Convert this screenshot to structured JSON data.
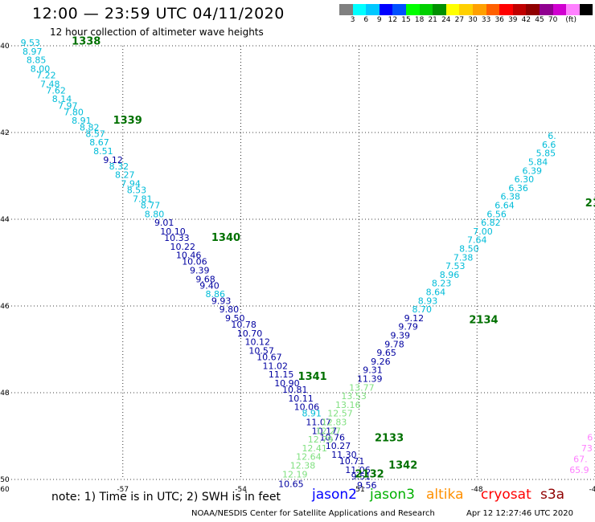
{
  "title": "12:00 — 23:59 UTC 04/11/2020",
  "subtitle": "12 hour collection of altimeter wave heights",
  "legend": {
    "colors": [
      "#808080",
      "#00ffff",
      "#00c8ff",
      "#0000ff",
      "#0050ff",
      "#00ff00",
      "#00d000",
      "#009000",
      "#ffff00",
      "#ffd000",
      "#ffa000",
      "#ff6000",
      "#ff0000",
      "#c00000",
      "#900000",
      "#900090",
      "#d000d0",
      "#ff80ff",
      "#000000"
    ],
    "labels": [
      "3",
      "6",
      "9",
      "12",
      "15",
      "18",
      "21",
      "24",
      "27",
      "30",
      "33",
      "36",
      "39",
      "42",
      "45",
      "70",
      "(ft)"
    ]
  },
  "axes": {
    "x_ticks": [
      "-57",
      "-54",
      "-51",
      "-48",
      "-45"
    ],
    "y_ticks": [
      "-40",
      "-42",
      "-44",
      "-46",
      "-48",
      "-50"
    ],
    "corner_label": "-60",
    "xlim": [
      -60,
      -45
    ],
    "ylim": [
      -50,
      -40
    ]
  },
  "tracks": [
    {
      "id": "1338",
      "color": "#007000",
      "lon": -58.3,
      "lat": -39.97
    },
    {
      "id": "1339",
      "color": "#007000",
      "lon": -57.25,
      "lat": -41.8
    },
    {
      "id": "1340",
      "color": "#007000",
      "lon": -54.75,
      "lat": -44.5
    },
    {
      "id": "1341",
      "color": "#007000",
      "lon": -52.55,
      "lat": -47.7
    },
    {
      "id": "1342",
      "color": "#007000",
      "lon": -50.25,
      "lat": -49.75
    },
    {
      "id": "2132",
      "color": "#007000",
      "lon": -51.1,
      "lat": -49.95
    },
    {
      "id": "2133",
      "color": "#007000",
      "lon": -50.6,
      "lat": -49.12
    },
    {
      "id": "2134",
      "color": "#007000",
      "lon": -48.2,
      "lat": -46.4
    },
    {
      "id": "21",
      "color": "#007000",
      "lon": -45.25,
      "lat": -43.7
    }
  ],
  "observations": [
    {
      "value": "9.53",
      "color": "#00bcd8",
      "lon": -59.6,
      "lat": -40.0
    },
    {
      "value": "8.97",
      "color": "#00bcd8",
      "lon": -59.55,
      "lat": -40.2
    },
    {
      "value": "8.85",
      "color": "#00bcd8",
      "lon": -59.45,
      "lat": -40.4
    },
    {
      "value": "8.00",
      "color": "#00bcd8",
      "lon": -59.35,
      "lat": -40.6
    },
    {
      "value": "7.22",
      "color": "#00bcd8",
      "lon": -59.2,
      "lat": -40.75
    },
    {
      "value": "7.48",
      "color": "#00bcd8",
      "lon": -59.1,
      "lat": -40.95
    },
    {
      "value": "7.62",
      "color": "#00bcd8",
      "lon": -58.95,
      "lat": -41.1
    },
    {
      "value": "8.14",
      "color": "#00bcd8",
      "lon": -58.8,
      "lat": -41.3
    },
    {
      "value": "7.97",
      "color": "#00bcd8",
      "lon": -58.65,
      "lat": -41.45
    },
    {
      "value": "7.80",
      "color": "#00bcd8",
      "lon": -58.5,
      "lat": -41.6
    },
    {
      "value": "8.91",
      "color": "#00bcd8",
      "lon": -58.3,
      "lat": -41.8
    },
    {
      "value": "8.82",
      "color": "#00bcd8",
      "lon": -58.1,
      "lat": -41.95
    },
    {
      "value": "8.57",
      "color": "#00bcd8",
      "lon": -57.95,
      "lat": -42.1
    },
    {
      "value": "8.67",
      "color": "#00bcd8",
      "lon": -57.85,
      "lat": -42.3
    },
    {
      "value": "8.51",
      "color": "#00bcd8",
      "lon": -57.75,
      "lat": -42.5
    },
    {
      "value": "9.12",
      "color": "#0000a0",
      "lon": -57.5,
      "lat": -42.7
    },
    {
      "value": "8.32",
      "color": "#00bcd8",
      "lon": -57.35,
      "lat": -42.85
    },
    {
      "value": "8.27",
      "color": "#00bcd8",
      "lon": -57.2,
      "lat": -43.05
    },
    {
      "value": "7.94",
      "color": "#00bcd8",
      "lon": -57.05,
      "lat": -43.25
    },
    {
      "value": "8.53",
      "color": "#00bcd8",
      "lon": -56.9,
      "lat": -43.4
    },
    {
      "value": "7.81",
      "color": "#00bcd8",
      "lon": -56.75,
      "lat": -43.6
    },
    {
      "value": "8.77",
      "color": "#00bcd8",
      "lon": -56.55,
      "lat": -43.75
    },
    {
      "value": "8.80",
      "color": "#00bcd8",
      "lon": -56.45,
      "lat": -43.95
    },
    {
      "value": "9.01",
      "color": "#0000a0",
      "lon": -56.2,
      "lat": -44.15
    },
    {
      "value": "10.10",
      "color": "#0000a0",
      "lon": -56.05,
      "lat": -44.35
    },
    {
      "value": "10.33",
      "color": "#0000a0",
      "lon": -55.95,
      "lat": -44.5
    },
    {
      "value": "10.22",
      "color": "#0000a0",
      "lon": -55.8,
      "lat": -44.7
    },
    {
      "value": "10.46",
      "color": "#0000a0",
      "lon": -55.65,
      "lat": -44.9
    },
    {
      "value": "10.06",
      "color": "#0000a0",
      "lon": -55.5,
      "lat": -45.05
    },
    {
      "value": "9.39",
      "color": "#0000a0",
      "lon": -55.3,
      "lat": -45.25
    },
    {
      "value": "9.68",
      "color": "#0000a0",
      "lon": -55.15,
      "lat": -45.45
    },
    {
      "value": "9.40",
      "color": "#0000a0",
      "lon": -55.05,
      "lat": -45.6
    },
    {
      "value": "8.86",
      "color": "#00bcd8",
      "lon": -54.9,
      "lat": -45.8
    },
    {
      "value": "9.93",
      "color": "#0000a0",
      "lon": -54.75,
      "lat": -45.95
    },
    {
      "value": "9.80",
      "color": "#0000a0",
      "lon": -54.55,
      "lat": -46.15
    },
    {
      "value": "9.50",
      "color": "#0000a0",
      "lon": -54.4,
      "lat": -46.35
    },
    {
      "value": "10.78",
      "color": "#0000a0",
      "lon": -54.25,
      "lat": -46.5
    },
    {
      "value": "10.70",
      "color": "#0000a0",
      "lon": -54.1,
      "lat": -46.7
    },
    {
      "value": "10.12",
      "color": "#0000a0",
      "lon": -53.9,
      "lat": -46.9
    },
    {
      "value": "10.57",
      "color": "#0000a0",
      "lon": -53.8,
      "lat": -47.1
    },
    {
      "value": "10.67",
      "color": "#0000a0",
      "lon": -53.6,
      "lat": -47.25
    },
    {
      "value": "11.02",
      "color": "#0000a0",
      "lon": -53.45,
      "lat": -47.45
    },
    {
      "value": "11.15",
      "color": "#0000a0",
      "lon": -53.3,
      "lat": -47.65
    },
    {
      "value": "10.90",
      "color": "#0000a0",
      "lon": -53.15,
      "lat": -47.85
    },
    {
      "value": "10.81",
      "color": "#0000a0",
      "lon": -52.95,
      "lat": -48.0
    },
    {
      "value": "10.11",
      "color": "#0000a0",
      "lon": -52.8,
      "lat": -48.2
    },
    {
      "value": "10.06",
      "color": "#0000a0",
      "lon": -52.65,
      "lat": -48.4
    },
    {
      "value": "8.91",
      "color": "#00bcd8",
      "lon": -52.45,
      "lat": -48.55
    },
    {
      "value": "11.07",
      "color": "#0000a0",
      "lon": -52.35,
      "lat": -48.75
    },
    {
      "value": "10.17",
      "color": "#0000a0",
      "lon": -52.2,
      "lat": -48.95
    },
    {
      "value": "10.76",
      "color": "#0000a0",
      "lon": -52.0,
      "lat": -49.1
    },
    {
      "value": "10.27",
      "color": "#0000a0",
      "lon": -51.85,
      "lat": -49.3
    },
    {
      "value": "11.30",
      "color": "#0000a0",
      "lon": -51.7,
      "lat": -49.5
    },
    {
      "value": "10.71",
      "color": "#0000a0",
      "lon": -51.5,
      "lat": -49.65
    },
    {
      "value": "11.06",
      "color": "#0000a0",
      "lon": -51.35,
      "lat": -49.85
    },
    {
      "value": "9.51",
      "color": "#0000a0",
      "lon": -51.2,
      "lat": -50.0
    },
    {
      "value": "9.56",
      "color": "#0000a0",
      "lon": -51.05,
      "lat": -50.2
    },
    {
      "value": "10.65",
      "color": "#0000a0",
      "lon": -53.05,
      "lat": -50.18
    },
    {
      "value": "12.19",
      "color": "#80e080",
      "lon": -52.95,
      "lat": -49.95
    },
    {
      "value": "12.38",
      "color": "#80e080",
      "lon": -52.75,
      "lat": -49.75
    },
    {
      "value": "12.64",
      "color": "#80e080",
      "lon": -52.6,
      "lat": -49.55
    },
    {
      "value": "12.41",
      "color": "#80e080",
      "lon": -52.45,
      "lat": -49.35
    },
    {
      "value": "12.79",
      "color": "#80e080",
      "lon": -52.3,
      "lat": -49.15
    },
    {
      "value": "12.27",
      "color": "#80e080",
      "lon": -52.1,
      "lat": -48.95
    },
    {
      "value": "12.83",
      "color": "#80e080",
      "lon": -51.95,
      "lat": -48.75
    },
    {
      "value": "12.57",
      "color": "#80e080",
      "lon": -51.8,
      "lat": -48.55
    },
    {
      "value": "13.16",
      "color": "#80e080",
      "lon": -51.6,
      "lat": -48.35
    },
    {
      "value": "13.53",
      "color": "#80e080",
      "lon": -51.45,
      "lat": -48.15
    },
    {
      "value": "13.77",
      "color": "#80e080",
      "lon": -51.25,
      "lat": -47.95
    },
    {
      "value": "11.39",
      "color": "#0000a0",
      "lon": -51.05,
      "lat": -47.75
    },
    {
      "value": "9.31",
      "color": "#0000a0",
      "lon": -50.9,
      "lat": -47.55
    },
    {
      "value": "9.26",
      "color": "#0000a0",
      "lon": -50.7,
      "lat": -47.35
    },
    {
      "value": "9.65",
      "color": "#0000a0",
      "lon": -50.55,
      "lat": -47.15
    },
    {
      "value": "9.78",
      "color": "#0000a0",
      "lon": -50.35,
      "lat": -46.95
    },
    {
      "value": "9.39",
      "color": "#0000a0",
      "lon": -50.2,
      "lat": -46.75
    },
    {
      "value": "9.79",
      "color": "#0000a0",
      "lon": -50.0,
      "lat": -46.55
    },
    {
      "value": "9.12",
      "color": "#0000a0",
      "lon": -49.85,
      "lat": -46.35
    },
    {
      "value": "8.70",
      "color": "#00bcd8",
      "lon": -49.65,
      "lat": -46.15
    },
    {
      "value": "8.93",
      "color": "#00bcd8",
      "lon": -49.5,
      "lat": -45.95
    },
    {
      "value": "8.64",
      "color": "#00bcd8",
      "lon": -49.3,
      "lat": -45.75
    },
    {
      "value": "8.23",
      "color": "#00bcd8",
      "lon": -49.15,
      "lat": -45.55
    },
    {
      "value": "8.96",
      "color": "#00bcd8",
      "lon": -48.95,
      "lat": -45.35
    },
    {
      "value": "7.53",
      "color": "#00bcd8",
      "lon": -48.8,
      "lat": -45.15
    },
    {
      "value": "7.38",
      "color": "#00bcd8",
      "lon": -48.6,
      "lat": -44.95
    },
    {
      "value": "8.50",
      "color": "#00bcd8",
      "lon": -48.45,
      "lat": -44.75
    },
    {
      "value": "7.64",
      "color": "#00bcd8",
      "lon": -48.25,
      "lat": -44.55
    },
    {
      "value": "7.00",
      "color": "#00bcd8",
      "lon": -48.1,
      "lat": -44.35
    },
    {
      "value": "6.82",
      "color": "#00bcd8",
      "lon": -47.9,
      "lat": -44.15
    },
    {
      "value": "6.56",
      "color": "#00bcd8",
      "lon": -47.75,
      "lat": -43.95
    },
    {
      "value": "6.64",
      "color": "#00bcd8",
      "lon": -47.55,
      "lat": -43.75
    },
    {
      "value": "6.38",
      "color": "#00bcd8",
      "lon": -47.4,
      "lat": -43.55
    },
    {
      "value": "6.36",
      "color": "#00bcd8",
      "lon": -47.2,
      "lat": -43.35
    },
    {
      "value": "6.30",
      "color": "#00bcd8",
      "lon": -47.05,
      "lat": -43.15
    },
    {
      "value": "6.39",
      "color": "#00bcd8",
      "lon": -46.85,
      "lat": -42.95
    },
    {
      "value": "5.84",
      "color": "#00bcd8",
      "lon": -46.7,
      "lat": -42.75
    },
    {
      "value": "5.85",
      "color": "#00bcd8",
      "lon": -46.5,
      "lat": -42.55
    },
    {
      "value": "6.6",
      "color": "#00bcd8",
      "lon": -46.35,
      "lat": -42.35
    },
    {
      "value": "6.",
      "color": "#00bcd8",
      "lon": -46.2,
      "lat": -42.15
    },
    {
      "value": "6",
      "color": "#ff80ff",
      "lon": -45.2,
      "lat": -49.1
    },
    {
      "value": "73",
      "color": "#ff80ff",
      "lon": -45.35,
      "lat": -49.35
    },
    {
      "value": "67.",
      "color": "#ff80ff",
      "lon": -45.55,
      "lat": -49.6
    },
    {
      "value": "65.9",
      "color": "#ff80ff",
      "lon": -45.65,
      "lat": -49.85
    }
  ],
  "note": "note:  1) Time is in UTC; 2) SWH is in feet",
  "satellites": [
    {
      "name": "jason2",
      "color": "#0000ff"
    },
    {
      "name": "jason3",
      "color": "#00b000"
    },
    {
      "name": "altika",
      "color": "#ff9000"
    },
    {
      "name": "cryosat",
      "color": "#ff0000"
    },
    {
      "name": "s3a",
      "color": "#900000"
    }
  ],
  "credit": "NOAA/NESDIS Center for Satellite Applications and Research",
  "timestamp": "Apr 12 12:27:46 UTC 2020"
}
